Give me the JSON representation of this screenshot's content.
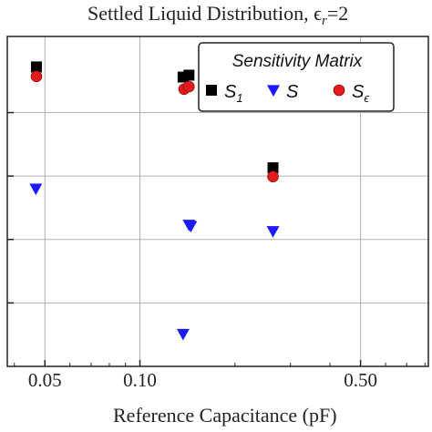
{
  "chart_data": {
    "type": "scatter",
    "title": "Settled Liquid Distribution, ϵ",
    "title_sub": "r",
    "title_tail": "=2",
    "xlabel": "Reference Capacitance (pF)",
    "ylabel": "",
    "xscale": "log",
    "xlim": [
      0.038,
      0.82
    ],
    "ylim": [
      0,
      5.2
    ],
    "xticks": [
      {
        "value": 0.05,
        "label": "0.05"
      },
      {
        "value": 0.1,
        "label": "0.10"
      },
      {
        "value": 0.5,
        "label": "0.50"
      }
    ],
    "ygrid": [
      1,
      2,
      3,
      4
    ],
    "grid": true,
    "legend": {
      "title": "Sensitivity Matrix",
      "placement": "top-right"
    },
    "series": [
      {
        "name": "S",
        "name_sub": "1",
        "marker": "square",
        "color": "#000000",
        "points": [
          {
            "x": 0.047,
            "y": 4.72
          },
          {
            "x": 0.137,
            "y": 4.56
          },
          {
            "x": 0.143,
            "y": 4.59
          },
          {
            "x": 0.264,
            "y": 3.13
          }
        ]
      },
      {
        "name": "S",
        "name_sub": "",
        "marker": "triangle-down",
        "color": "#1a1aff",
        "points": [
          {
            "x": 0.0468,
            "y": 2.8
          },
          {
            "x": 0.143,
            "y": 2.23
          },
          {
            "x": 0.145,
            "y": 2.21
          },
          {
            "x": 0.264,
            "y": 2.13
          },
          {
            "x": 0.137,
            "y": 0.51
          }
        ]
      },
      {
        "name": "S",
        "name_sub": "ϵ",
        "marker": "circle",
        "color": "#e31a1c",
        "points": [
          {
            "x": 0.047,
            "y": 4.57
          },
          {
            "x": 0.138,
            "y": 4.37
          },
          {
            "x": 0.143,
            "y": 4.41
          },
          {
            "x": 0.264,
            "y": 2.99
          }
        ]
      }
    ]
  }
}
